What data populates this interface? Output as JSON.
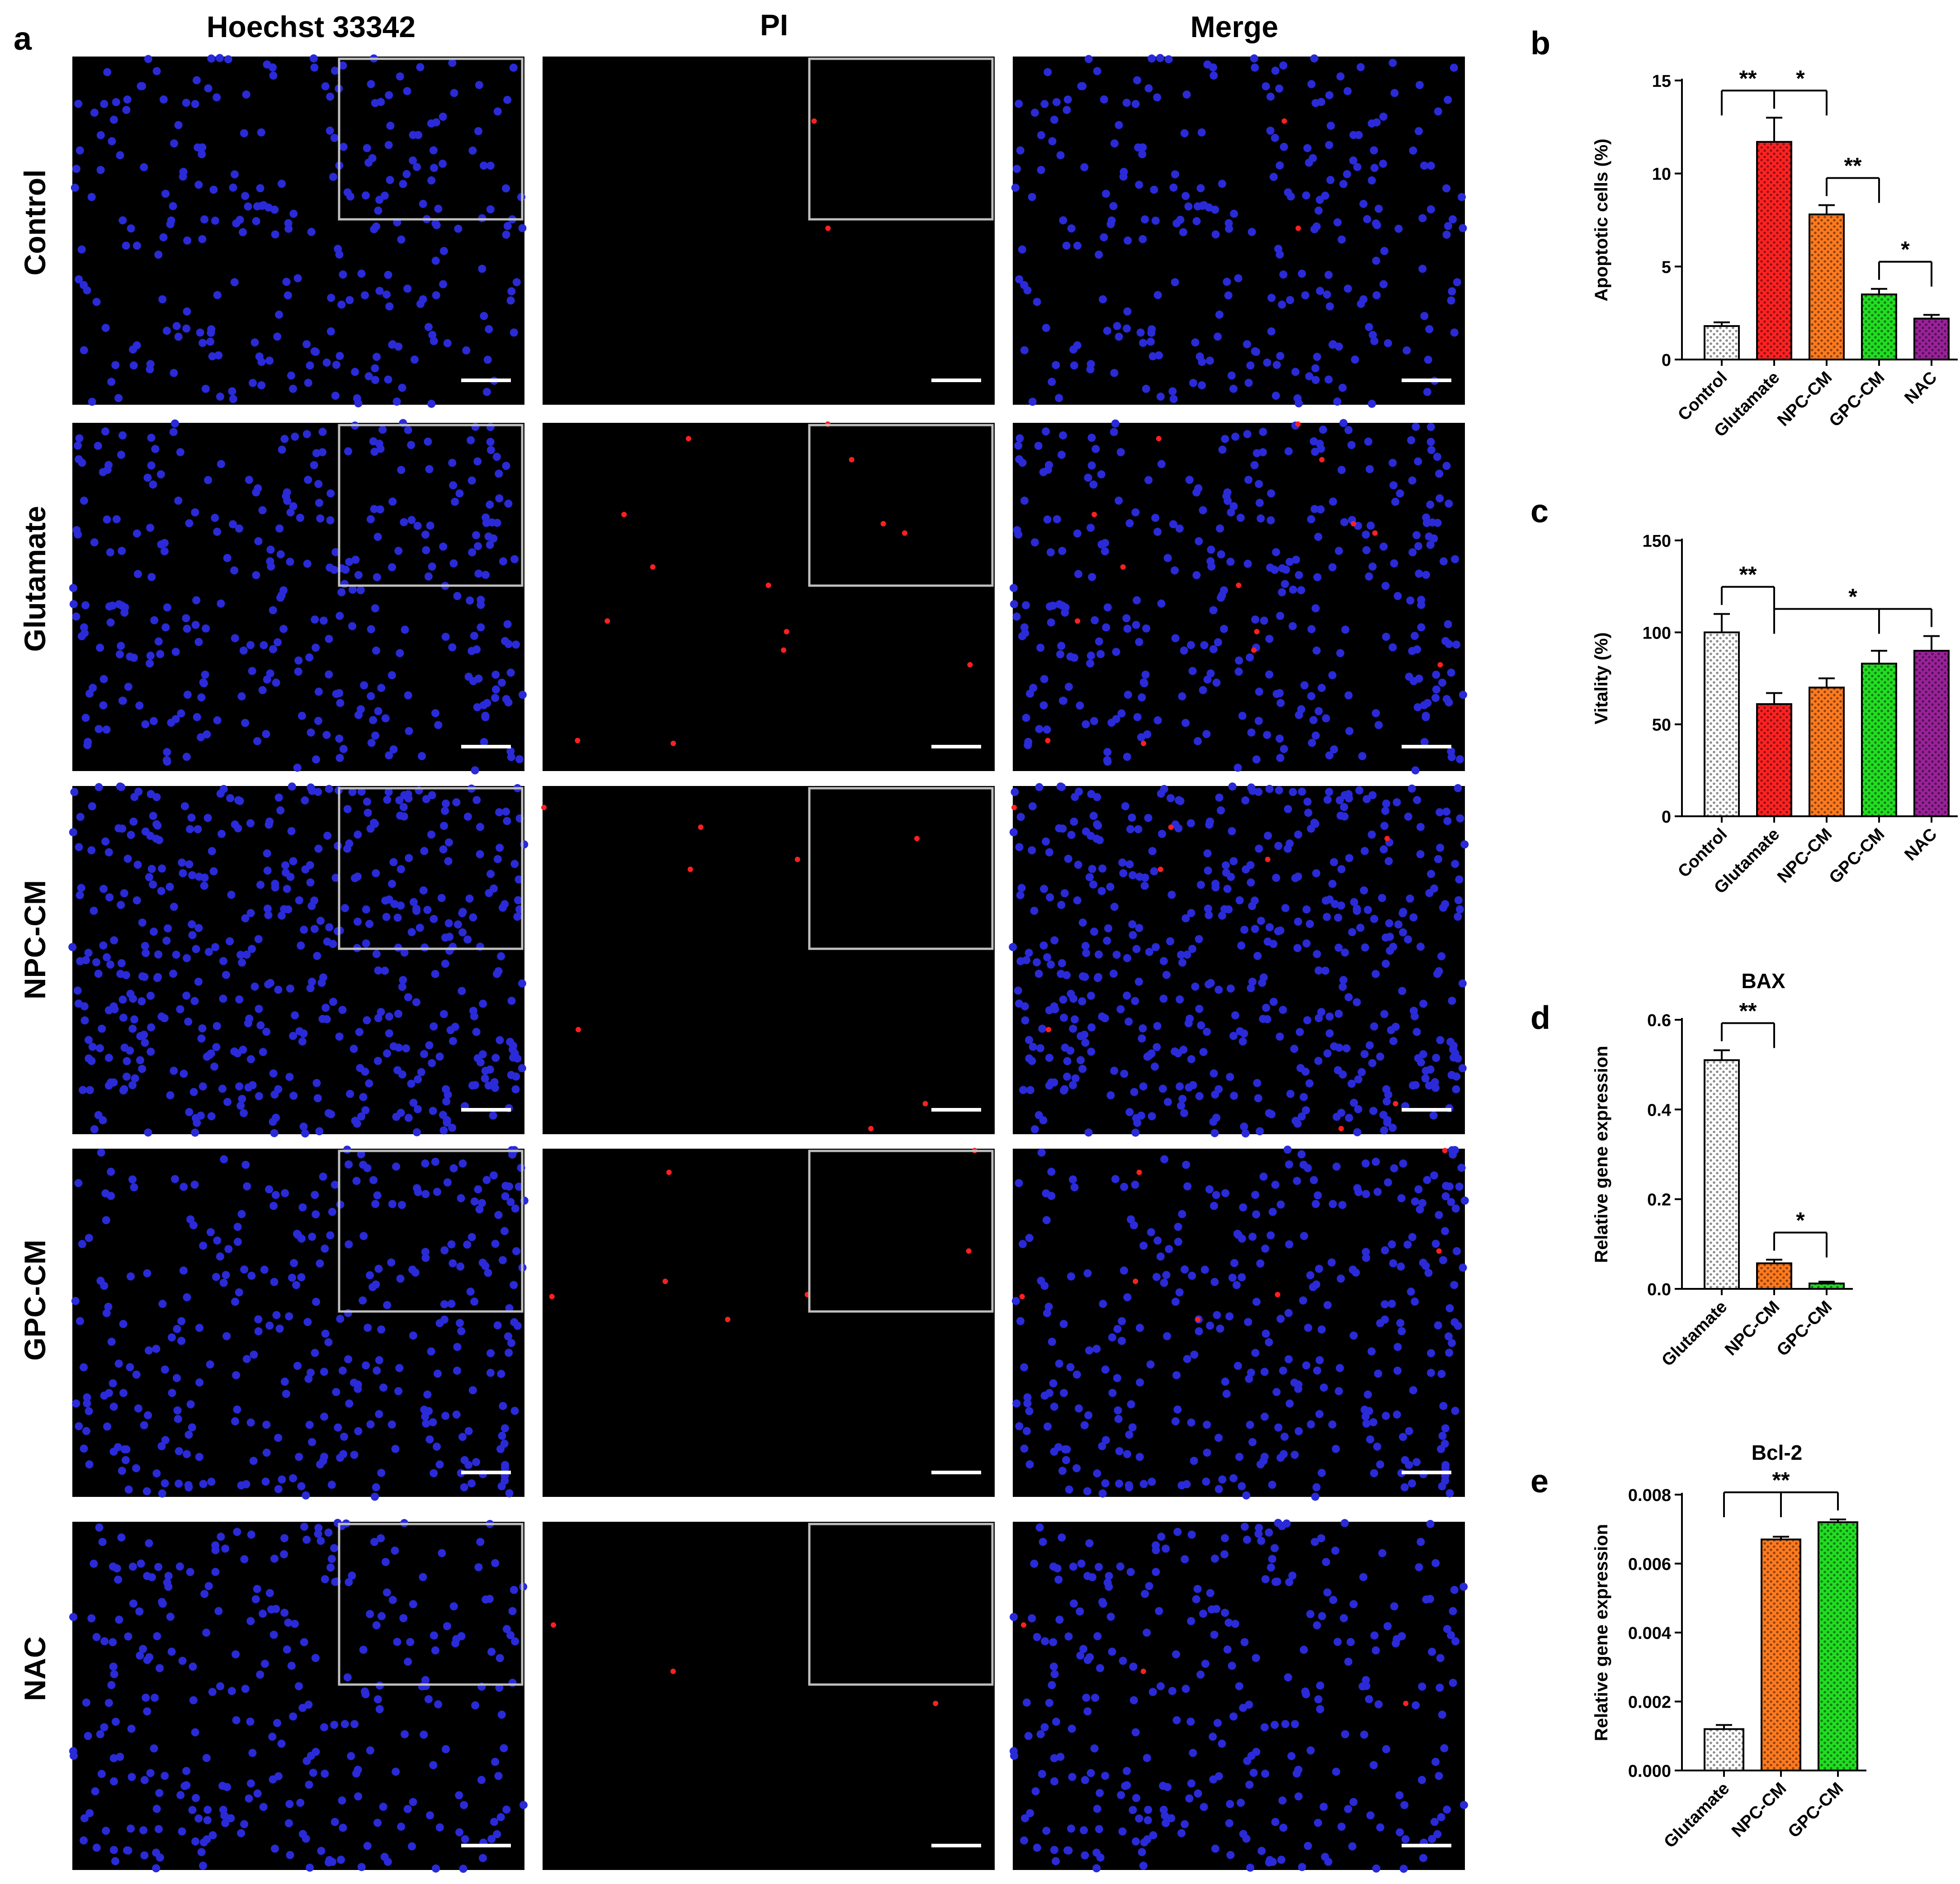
{
  "panel_a": {
    "letter": "a",
    "columns": [
      "Hoechst 33342",
      "PI",
      "Merge"
    ],
    "rows": [
      "Control",
      "Glutamate",
      "NPC-CM",
      "GPC-CM",
      "NAC"
    ]
  },
  "chart_data": [
    {
      "id": "b",
      "letter": "b",
      "type": "bar",
      "title": "",
      "ylabel": "Apoptotic cells (%)",
      "xlabel": "",
      "ylim": [
        0,
        15
      ],
      "yticks": [
        0,
        5,
        10,
        15
      ],
      "ytick_labels": [
        "0",
        "5",
        "10",
        "15"
      ],
      "categories": [
        "Control",
        "Glutamate",
        "NPC-CM",
        "GPC-CM",
        "NAC"
      ],
      "values": [
        1.8,
        11.7,
        7.8,
        3.5,
        2.2
      ],
      "errors": [
        0.2,
        1.3,
        0.5,
        0.3,
        0.2
      ],
      "colors": [
        "#ffffff",
        "#ff2222",
        "#ff7a1f",
        "#22dd22",
        "#992299"
      ],
      "significance": [
        {
          "from": 0,
          "to": 1,
          "label": "**"
        },
        {
          "from": 1,
          "to": 2,
          "label": "*"
        },
        {
          "from": 2,
          "to": 3,
          "label": "**"
        },
        {
          "from": 3,
          "to": 4,
          "label": "*"
        }
      ]
    },
    {
      "id": "c",
      "letter": "c",
      "type": "bar",
      "title": "",
      "ylabel": "Vitality (%)",
      "xlabel": "",
      "ylim": [
        0,
        150
      ],
      "yticks": [
        0,
        50,
        100,
        150
      ],
      "ytick_labels": [
        "0",
        "50",
        "100",
        "150"
      ],
      "categories": [
        "Control",
        "Glutamate",
        "NPC-CM",
        "GPC-CM",
        "NAC"
      ],
      "values": [
        100,
        61,
        70,
        83,
        90
      ],
      "errors": [
        10,
        6,
        5,
        7,
        8
      ],
      "colors": [
        "#ffffff",
        "#ff2222",
        "#ff7a1f",
        "#22dd22",
        "#992299"
      ],
      "significance": [
        {
          "from": 0,
          "to": 1,
          "label": "**"
        },
        {
          "from": 1,
          "to": [
            3,
            4
          ],
          "label": "*"
        }
      ]
    },
    {
      "id": "d",
      "letter": "d",
      "type": "bar",
      "title": "BAX",
      "ylabel": "Relative gene expression",
      "xlabel": "",
      "ylim": [
        0,
        0.6
      ],
      "yticks": [
        0,
        0.2,
        0.4,
        0.6
      ],
      "ytick_labels": [
        "0.0",
        "0.2",
        "0.4",
        "0.6"
      ],
      "categories": [
        "Glutamate",
        "NPC-CM",
        "GPC-CM"
      ],
      "values": [
        0.51,
        0.057,
        0.012
      ],
      "errors": [
        0.022,
        0.008,
        0.004
      ],
      "colors": [
        "#ffffff",
        "#ff7a1f",
        "#22dd22"
      ],
      "significance": [
        {
          "from": 0,
          "to": 1,
          "label": "**"
        },
        {
          "from": 1,
          "to": 2,
          "label": "*"
        }
      ]
    },
    {
      "id": "e",
      "letter": "e",
      "type": "bar",
      "title": "Bcl-2",
      "ylabel": "Relative gene expression",
      "xlabel": "",
      "ylim": [
        0,
        0.008
      ],
      "yticks": [
        0,
        0.002,
        0.004,
        0.006,
        0.008
      ],
      "ytick_labels": [
        "0.000",
        "0.002",
        "0.004",
        "0.006",
        "0.008"
      ],
      "categories": [
        "Glutamate",
        "NPC-CM",
        "GPC-CM"
      ],
      "values": [
        0.0012,
        0.0067,
        0.0072
      ],
      "errors": [
        0.00012,
        8e-05,
        8e-05
      ],
      "colors": [
        "#ffffff",
        "#ff7a1f",
        "#22dd22"
      ],
      "significance": [
        {
          "from": 0,
          "to": [
            1,
            2
          ],
          "label": "**"
        }
      ]
    }
  ]
}
